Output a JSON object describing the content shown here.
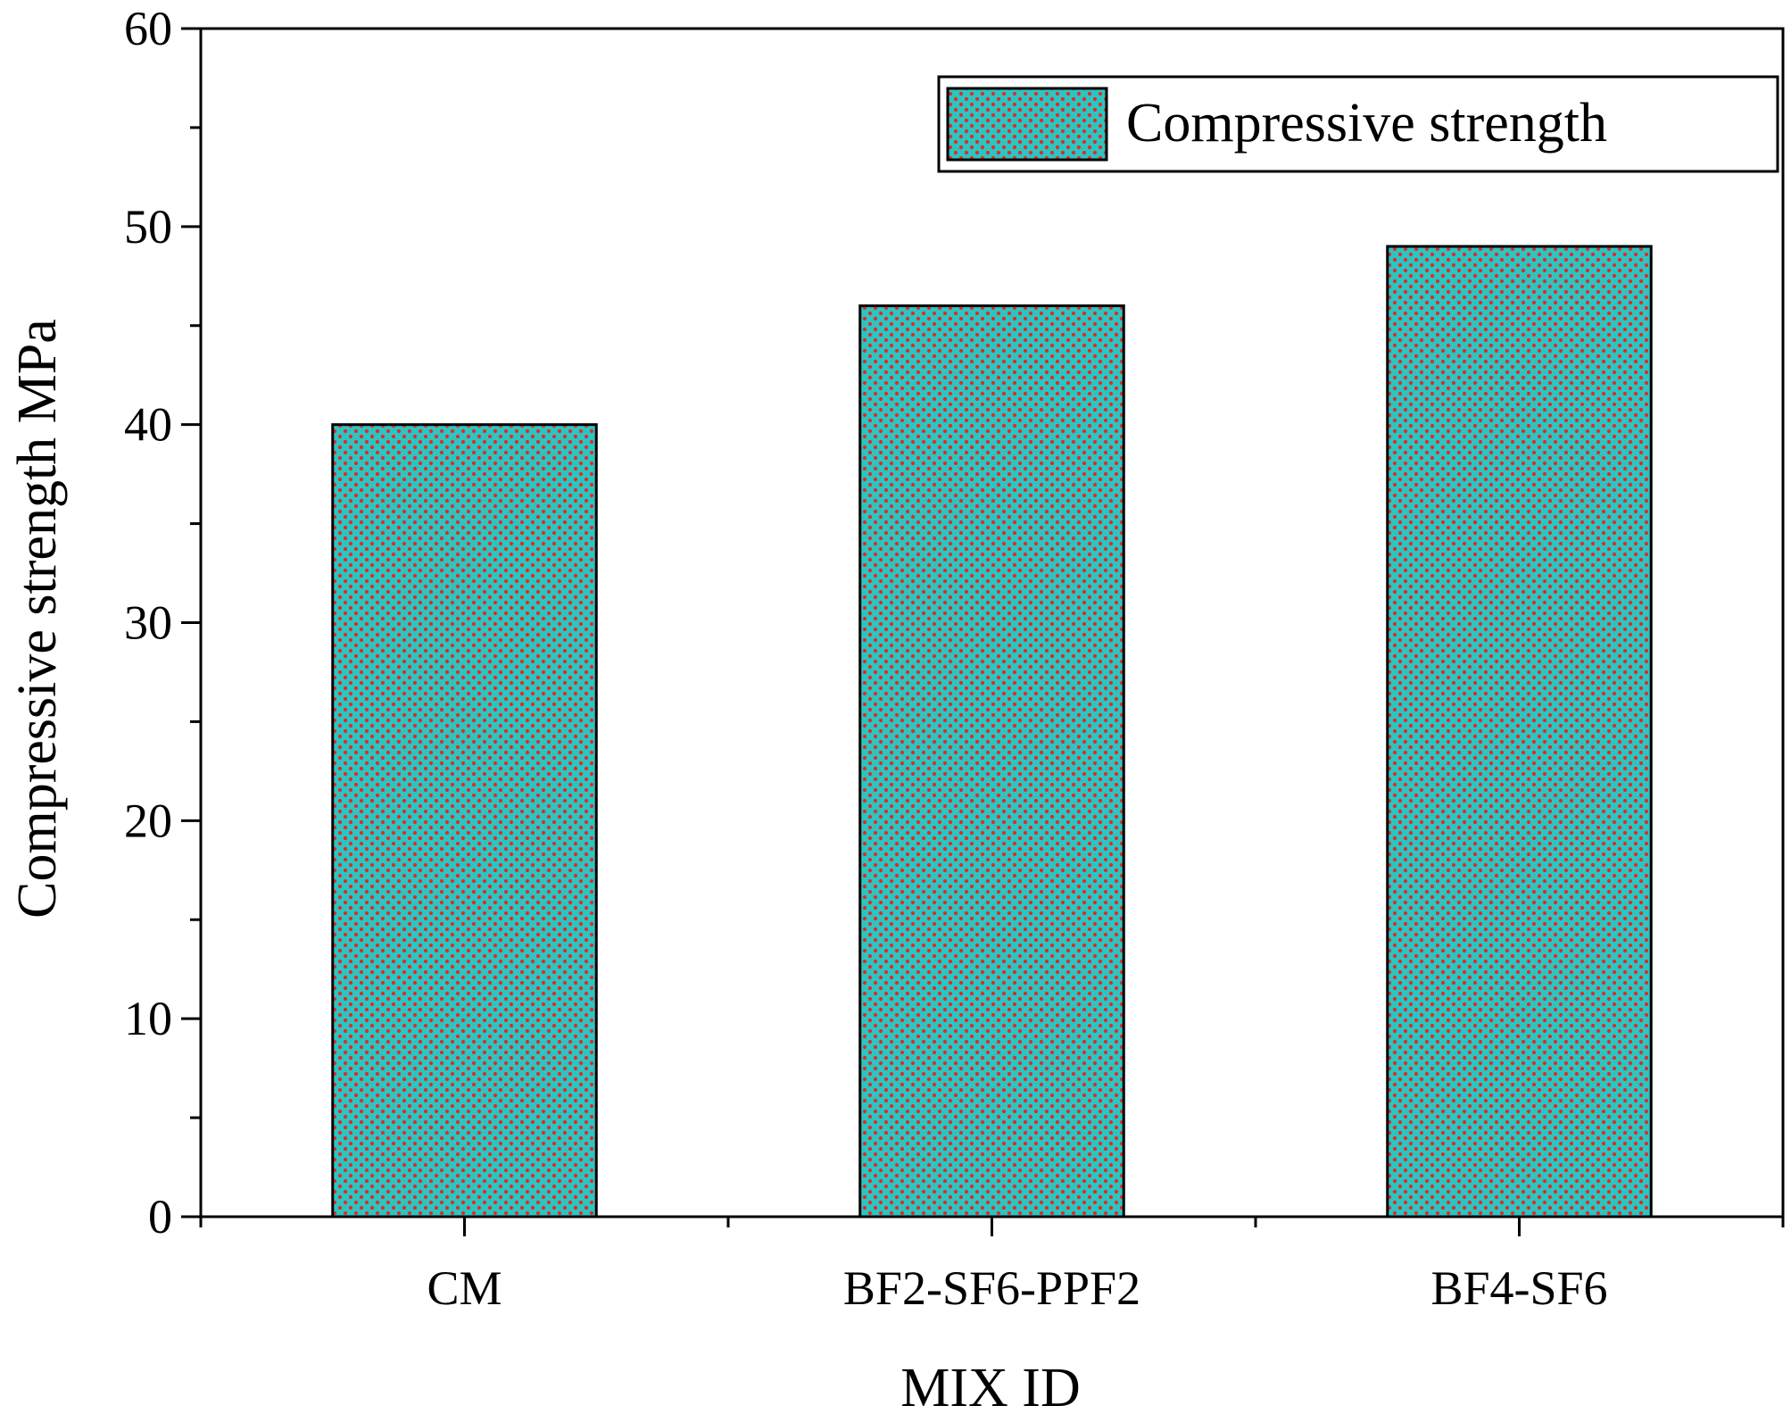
{
  "chart_data": {
    "type": "bar",
    "categories": [
      "CM",
      "BF2-SF6-PPF2",
      "BF4-SF6"
    ],
    "series": [
      {
        "name": "Compressive strength",
        "values": [
          40,
          46,
          49
        ]
      }
    ],
    "xlabel": "MIX ID",
    "ylabel": "Compressive strength MPa",
    "ylim": [
      0,
      60
    ],
    "yticks": [
      0,
      10,
      20,
      30,
      40,
      50,
      60
    ],
    "legend_position": "top-right",
    "grid": false,
    "colors": {
      "bar_fill": "#2ec4c0",
      "bar_dots": "#e02a2a",
      "axis": "#000000"
    }
  }
}
